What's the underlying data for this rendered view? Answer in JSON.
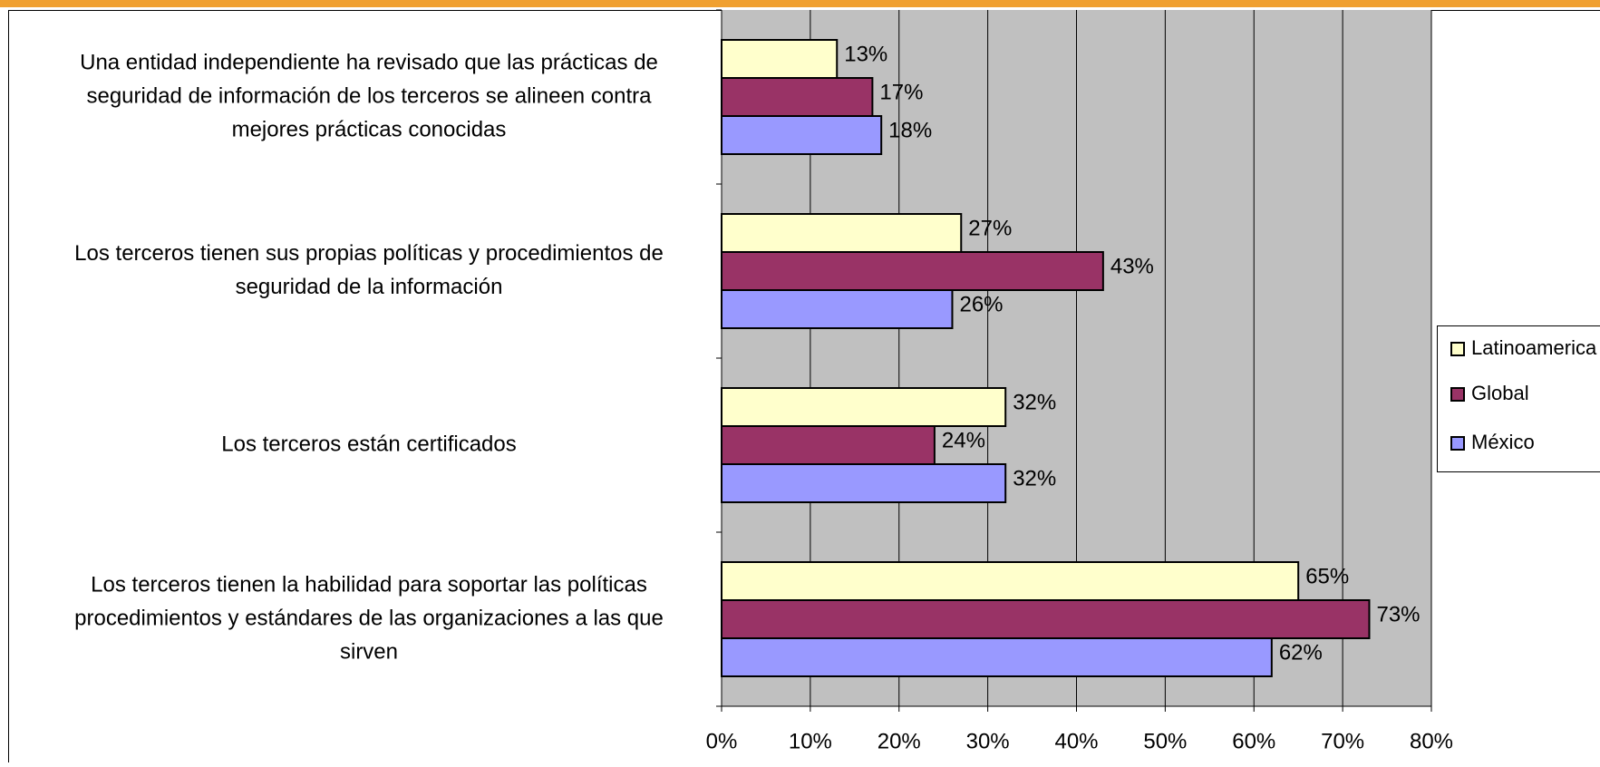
{
  "chart_data": {
    "type": "bar",
    "orientation": "horizontal",
    "categories": [
      [
        "Una entidad independiente ha revisado que las prácticas de",
        "seguridad de información de los terceros se alineen contra",
        "mejores prácticas conocidas"
      ],
      [
        "Los terceros tienen sus propias políticas y procedimientos de",
        "seguridad de la información"
      ],
      [
        "Los terceros están certificados"
      ],
      [
        "Los terceros tienen la habilidad para soportar las políticas",
        "procedimientos y estándares de las organizaciones a las que",
        "sirven"
      ]
    ],
    "series": [
      {
        "name": "Latinoamerica",
        "color": "#ffffcc",
        "values": [
          13,
          27,
          32,
          65
        ],
        "value_labels": [
          "13%",
          "27%",
          "32%",
          "65%"
        ]
      },
      {
        "name": "Global",
        "color": "#993366",
        "values": [
          17,
          43,
          24,
          73
        ],
        "value_labels": [
          "17%",
          "43%",
          "24%",
          "73%"
        ]
      },
      {
        "name": "México",
        "color": "#9999ff",
        "values": [
          18,
          26,
          32,
          62
        ],
        "value_labels": [
          "18%",
          "26%",
          "32%",
          "62%"
        ]
      }
    ],
    "xlim": [
      0,
      80
    ],
    "xticks": [
      {
        "value": 0,
        "label": "0%"
      },
      {
        "value": 10,
        "label": "10%"
      },
      {
        "value": 20,
        "label": "20%"
      },
      {
        "value": 30,
        "label": "30%"
      },
      {
        "value": 40,
        "label": "40%"
      },
      {
        "value": 50,
        "label": "50%"
      },
      {
        "value": 60,
        "label": "60%"
      },
      {
        "value": 70,
        "label": "70%"
      },
      {
        "value": 80,
        "label": "80%"
      }
    ],
    "grid": true,
    "legend": "right",
    "plot_background": "#c0c0c0"
  }
}
